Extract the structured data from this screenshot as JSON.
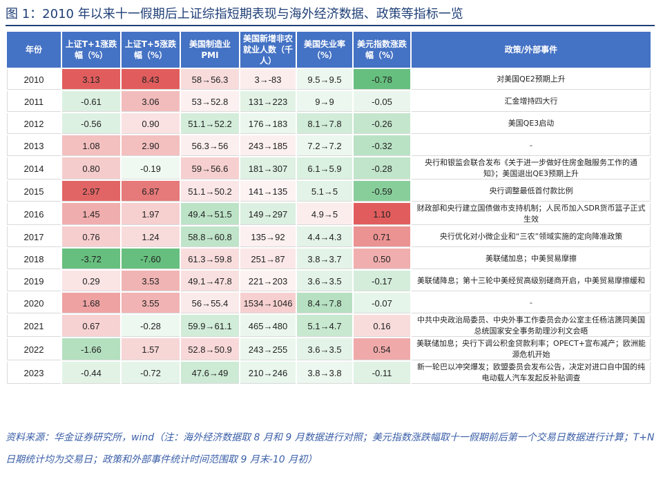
{
  "figure_title": "图 1：2010 年以来十一假期后上证综指短期表现与海外经济数据、政策等指标一览",
  "headers": {
    "year": "年份",
    "t1": "上证T+1涨跌幅（%）",
    "t5": "上证T+5涨跌幅（%）",
    "pmi": "美国制造业PMI",
    "nfp": "美国新增非农就业人数（千人）",
    "unemp": "美国失业率（%）",
    "usd": "美元指数涨跌幅（%）",
    "event": "政策/外部事件"
  },
  "rows": [
    {
      "year": "2010",
      "t1": "3.13",
      "t5": "8.43",
      "pmi": "58→56.3",
      "nfp": "3→-83",
      "unemp": "9.5→9.5",
      "usd": "-0.78",
      "event": "对美国QE2预期上升"
    },
    {
      "year": "2011",
      "t1": "-0.61",
      "t5": "3.06",
      "pmi": "53→52.8",
      "nfp": "131→223",
      "unemp": "9→9",
      "usd": "-0.05",
      "event": "汇金增持四大行"
    },
    {
      "year": "2012",
      "t1": "-0.56",
      "t5": "0.90",
      "pmi": "51.1→52.2",
      "nfp": "176→183",
      "unemp": "8.1→7.8",
      "usd": "-0.26",
      "event": "美国QE3启动"
    },
    {
      "year": "2013",
      "t1": "1.08",
      "t5": "2.90",
      "pmi": "56.3→56",
      "nfp": "243→185",
      "unemp": "7.2→7.2",
      "usd": "-0.32",
      "event": "-"
    },
    {
      "year": "2014",
      "t1": "0.80",
      "t5": "-0.19",
      "pmi": "59→56.6",
      "nfp": "181→307",
      "unemp": "6.1→5.9",
      "usd": "-0.28",
      "event": "央行和银监会联合发布《关于进一步做好住房金融服务工作的通知》；美国退出QE3预期上升"
    },
    {
      "year": "2015",
      "t1": "2.97",
      "t5": "6.87",
      "pmi": "51.1→50.2",
      "nfp": "141→135",
      "unemp": "5.1→5",
      "usd": "-0.59",
      "event": "央行调整最低首付款比例"
    },
    {
      "year": "2016",
      "t1": "1.45",
      "t5": "1.97",
      "pmi": "49.4→51.5",
      "nfp": "149→297",
      "unemp": "4.9→5",
      "usd": "1.10",
      "event": "财政部和央行建立国债做市支持机制；人民币加入SDR货币篮子正式生效"
    },
    {
      "year": "2017",
      "t1": "0.76",
      "t5": "1.24",
      "pmi": "58.8→60.8",
      "nfp": "135→92",
      "unemp": "4.4→4.3",
      "usd": "0.71",
      "event": "央行优化对小微企业和“三农”领域实施的定向降准政策"
    },
    {
      "year": "2018",
      "t1": "-3.72",
      "t5": "-7.60",
      "pmi": "61.3→59.8",
      "nfp": "251→87",
      "unemp": "3.8→3.7",
      "usd": "0.50",
      "event": "美联储加息；中美贸易摩擦"
    },
    {
      "year": "2019",
      "t1": "0.29",
      "t5": "3.53",
      "pmi": "49.1→47.8",
      "nfp": "221→203",
      "unemp": "3.6→3.5",
      "usd": "-0.17",
      "event": "美联储降息；第十三轮中美经贸高级别磋商开启，中美贸易摩擦缓和"
    },
    {
      "year": "2020",
      "t1": "1.68",
      "t5": "3.55",
      "pmi": "56→55.4",
      "nfp": "1534→1046",
      "unemp": "8.4→7.8",
      "usd": "-0.07",
      "event": "-"
    },
    {
      "year": "2021",
      "t1": "0.67",
      "t5": "-0.28",
      "pmi": "59.9→61.1",
      "nfp": "465→480",
      "unemp": "5.1→4.7",
      "usd": "0.16",
      "event": "中共中央政治局委员、中央外事工作委员会办公室主任杨洁篪同美国总统国家安全事务助理沙利文会晤"
    },
    {
      "year": "2022",
      "t1": "-1.66",
      "t5": "1.57",
      "pmi": "52.8→50.9",
      "nfp": "243→255",
      "unemp": "3.6→3.5",
      "usd": "0.54",
      "event": "美联储加息；央行下调公积金贷款利率；OPECT+宣布减产；欧洲能源危机开始"
    },
    {
      "year": "2023",
      "t1": "-0.44",
      "t5": "-0.72",
      "pmi": "47.6→49",
      "nfp": "210→246",
      "unemp": "3.8→3.8",
      "usd": "-0.11",
      "event": "新一轮巴以冲突爆发；欧盟委员会发布公告，决定对进口自中国的纯电动载人汽车发起反补贴调查"
    }
  ],
  "colors": {
    "header_bg": "#4472c4",
    "title_color": "#1f3f77",
    "positive_max": "#e05a5a",
    "negative_max": "#63be7b",
    "neutral": "#ffffff"
  },
  "source_note": "资料来源：华金证券研究所，wind（注：海外经济数据取 8 月和 9 月数据进行对照；美元指数涨跌幅取十一假期前后第一个交易日数据进行计算；T+N 日期统计均为交易日；政策和外部事件统计时间范围取 9 月末-10 月初）"
}
